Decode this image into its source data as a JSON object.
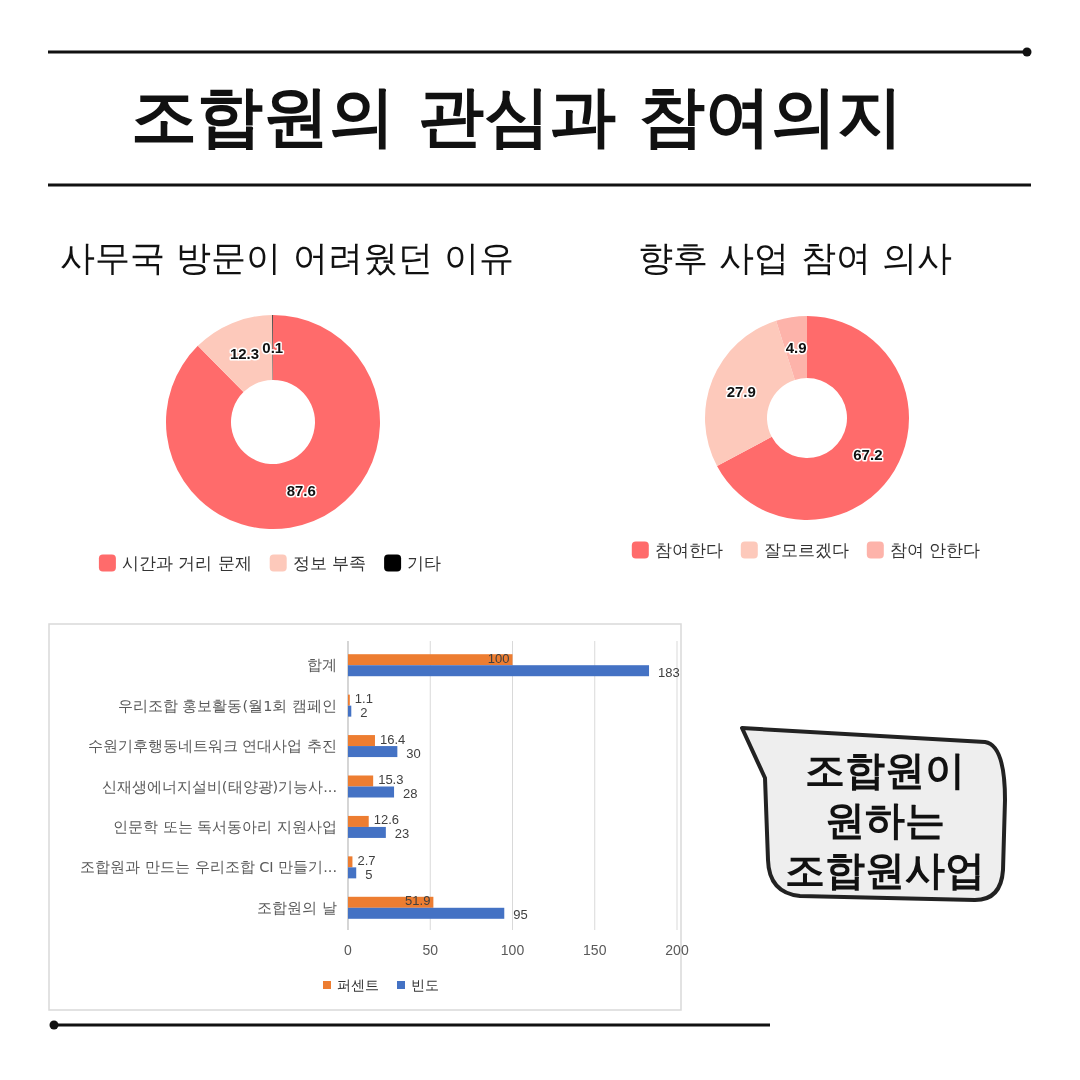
{
  "chart_data": [
    {
      "type": "other",
      "title": "조합원의 관심과 참여의지"
    },
    {
      "type": "donut",
      "title": "사무국 방문이 어려웠던 이유",
      "categories": [
        "시간과 거리 문제",
        "정보 부족",
        "기타"
      ],
      "values": [
        87.6,
        12.3,
        0.1
      ],
      "colors": [
        "#ff6b6b",
        "#fdc9bb",
        "#000000"
      ],
      "data_labels": true,
      "legend": "bottom"
    },
    {
      "type": "donut",
      "title": "향후 사업 참여 의사",
      "categories": [
        "참여한다",
        "잘모르겠다",
        "참여 안한다"
      ],
      "values": [
        67.2,
        27.9,
        4.9
      ],
      "colors": [
        "#ff6b6b",
        "#fdc9bb",
        "#fdb3aa"
      ],
      "data_labels": true,
      "legend": "bottom"
    },
    {
      "type": "bar",
      "orientation": "horizontal",
      "categories": [
        "합계",
        "우리조합 홍보활동(월1회 캠페인",
        "수원기후행동네트워크 연대사업 추진",
        "신재생에너지설비(태양광)기능사...",
        "인문학 또는 독서동아리 지원사업",
        "조합원과 만드는 우리조합 CI 만들기...",
        "조합원의 날"
      ],
      "series": [
        {
          "name": "퍼센트",
          "color": "#ed7d31",
          "values": [
            100,
            1.1,
            16.4,
            15.3,
            12.6,
            2.7,
            51.9
          ]
        },
        {
          "name": "빈도",
          "color": "#4472c4",
          "values": [
            183,
            2,
            30,
            28,
            23,
            5,
            95
          ]
        }
      ],
      "xlim": [
        0,
        200
      ],
      "xticks": [
        0,
        50,
        100,
        150,
        200
      ],
      "grid": "x",
      "legend": "bottom",
      "data_labels": true
    },
    {
      "type": "other",
      "title": "조합원이 원하는 조합원사업"
    }
  ]
}
